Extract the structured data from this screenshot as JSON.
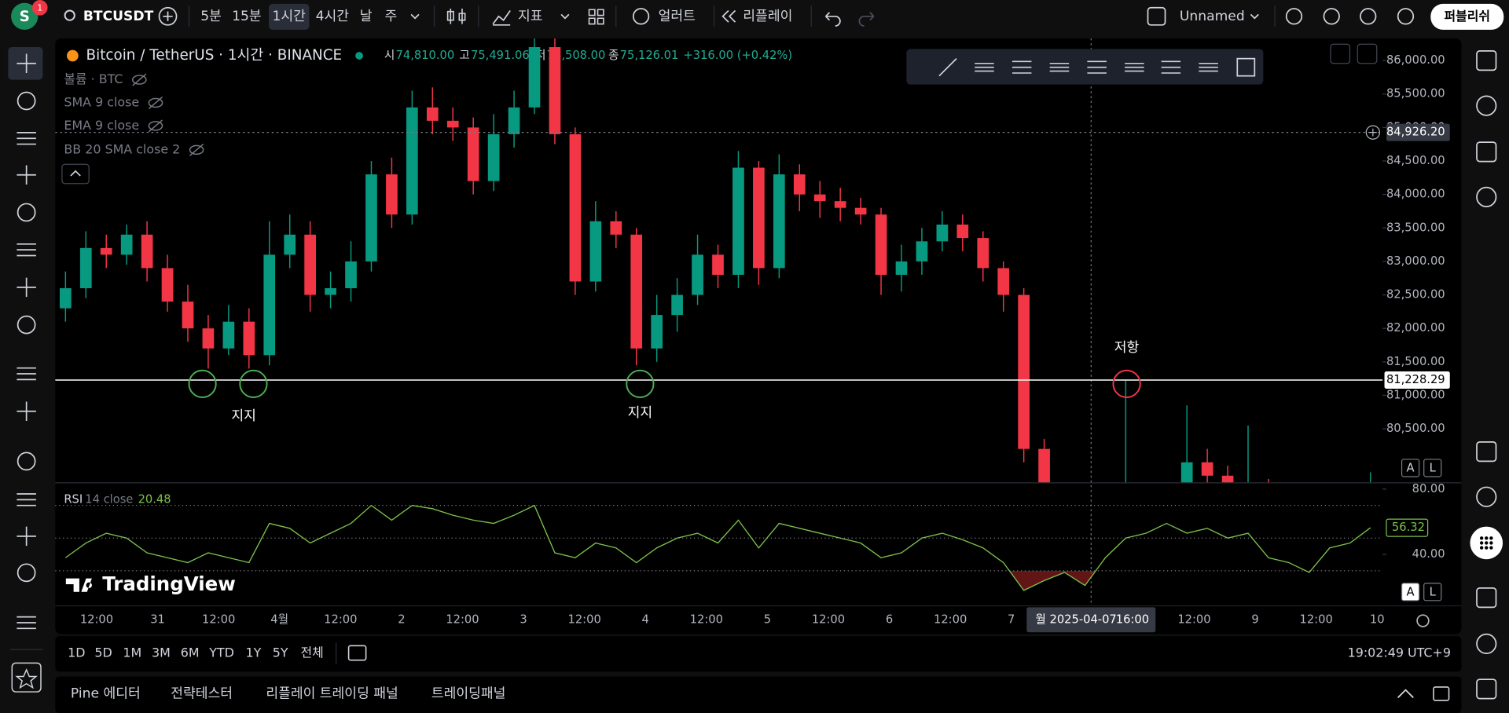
{
  "toolbar": {
    "avatar": "S",
    "badge": "1",
    "symbol": "BTCUSDT",
    "intervals": [
      "5분",
      "15분",
      "1시간",
      "4시간",
      "날",
      "주"
    ],
    "indicators": "지표",
    "alert": "얼러트",
    "replay": "리플레이",
    "layout_name": "Unnamed",
    "publish": "퍼블리쉬"
  },
  "legend": {
    "title": "Bitcoin / TetherUS · 1시간 · BINANCE",
    "open_label": "시",
    "open": "74,810.00",
    "high_label": "고",
    "high": "75,491.06",
    "low_label": "저",
    "low": "74,508.00",
    "close_label": "종",
    "close": "75,126.01",
    "change": "+316.00 (+0.42%)",
    "indicators": [
      "볼륨 · BTC",
      "SMA 9 close",
      "EMA 9 close",
      "BB 20 SMA close 2"
    ]
  },
  "chart_data": [
    {
      "type": "candlestick",
      "open": [
        82300,
        82600,
        83200,
        83100,
        83400,
        82900,
        82400,
        82000,
        81700,
        82100,
        81600,
        83100,
        83400,
        82500,
        82600,
        83000,
        84300,
        83700,
        85300,
        85100,
        85000,
        84200,
        84900,
        85300,
        86200,
        84900,
        82700,
        83600,
        83400,
        81700,
        82200,
        82500,
        83100,
        82800,
        84400,
        82900,
        84300,
        84000,
        83900,
        83800,
        83700,
        82800,
        83000,
        83300,
        83550,
        83350,
        82900,
        82500,
        80200,
        78800,
        78500,
        77800,
        77500,
        78200,
        78600,
        79400,
        80000,
        79800,
        79000,
        79600,
        79200,
        78900,
        78600,
        79000,
        79300
      ],
      "high": [
        82850,
        83450,
        83400,
        83550,
        83600,
        83100,
        82650,
        82200,
        82350,
        82300,
        83600,
        83700,
        83600,
        82850,
        83300,
        84500,
        84550,
        85550,
        85600,
        85300,
        85150,
        85200,
        85550,
        86400,
        86400,
        85000,
        83900,
        83750,
        83500,
        82500,
        82750,
        83400,
        83250,
        84650,
        84500,
        84600,
        84450,
        84200,
        84100,
        83950,
        83800,
        83250,
        83500,
        83750,
        83700,
        83450,
        83000,
        82600,
        80350,
        79000,
        78700,
        78000,
        81228.29,
        78900,
        79600,
        80850,
        80200,
        79950,
        80550,
        79750,
        79300,
        79050,
        79200,
        79500,
        79850
      ],
      "low": [
        82100,
        82450,
        82900,
        82950,
        82700,
        82250,
        81800,
        81400,
        81600,
        81400,
        81450,
        82900,
        82250,
        82300,
        82400,
        82850,
        83500,
        83550,
        84900,
        84800,
        84000,
        84050,
        84700,
        85200,
        84750,
        82500,
        82550,
        83200,
        81450,
        81500,
        81950,
        82350,
        82600,
        82600,
        82650,
        82750,
        83750,
        83650,
        83600,
        83550,
        82500,
        82550,
        82800,
        83150,
        83150,
        82700,
        82250,
        80000,
        78500,
        78200,
        77600,
        77200,
        77400,
        78000,
        78400,
        79200,
        79550,
        78800,
        78850,
        79000,
        78700,
        78400,
        78450,
        78800,
        79150
      ],
      "close": [
        82600,
        83200,
        83100,
        83400,
        82900,
        82400,
        82000,
        81700,
        82100,
        81600,
        83100,
        83400,
        82500,
        82600,
        83000,
        84300,
        83700,
        85300,
        85100,
        85000,
        84200,
        84900,
        85300,
        86200,
        84900,
        82700,
        83600,
        83400,
        81700,
        82200,
        82500,
        83100,
        82800,
        84400,
        82900,
        84300,
        84000,
        83900,
        83800,
        83700,
        82800,
        83000,
        83300,
        83550,
        83350,
        82900,
        82500,
        80200,
        78800,
        78500,
        77800,
        77500,
        78200,
        78600,
        79400,
        80000,
        79800,
        79000,
        79600,
        79200,
        78900,
        78600,
        79000,
        79300,
        79600
      ],
      "colors": {
        "up": "#089981",
        "down": "#f23645"
      },
      "ylim": [
        79700,
        86330
      ],
      "yticks": [
        {
          "value": 80500,
          "label": "80,500.00"
        },
        {
          "value": 81000,
          "label": "81,000.00"
        },
        {
          "value": 81500,
          "label": "81,500.00"
        },
        {
          "value": 82000,
          "label": "82,000.00"
        },
        {
          "value": 82500,
          "label": "82,500.00"
        },
        {
          "value": 83000,
          "label": "83,000.00"
        },
        {
          "value": 83500,
          "label": "83,500.00"
        },
        {
          "value": 84000,
          "label": "84,000.00"
        },
        {
          "value": 84500,
          "label": "84,500.00"
        },
        {
          "value": 85000,
          "label": "85,000.00"
        },
        {
          "value": 85500,
          "label": "85,500.00"
        },
        {
          "value": 86000,
          "label": "86,000.00"
        }
      ],
      "grid": false,
      "hline": {
        "value": 81228.29,
        "label": "81,228.29",
        "color": "#ffffff"
      },
      "crosshair": {
        "value": 84926.2,
        "label": "84,926.20"
      },
      "annotations": [
        {
          "text": "지지",
          "color": "#4caf50"
        },
        {
          "text": "지지",
          "color": "#4caf50"
        },
        {
          "text": "저항",
          "color": "#f23645"
        }
      ]
    },
    {
      "type": "line",
      "name": "RSI",
      "params": "14 close",
      "legend_value": "20.48",
      "color": "#7cc14a",
      "values": [
        38,
        47,
        53,
        50,
        41,
        38,
        35,
        41,
        38,
        35,
        59,
        56,
        47,
        53,
        59,
        70,
        61,
        70,
        68,
        64,
        61,
        59,
        64,
        70,
        41,
        38,
        47,
        44,
        35,
        44,
        50,
        53,
        47,
        61,
        44,
        59,
        56,
        53,
        50,
        47,
        38,
        41,
        50,
        53,
        49,
        44,
        35,
        18,
        24,
        29,
        21,
        38,
        50,
        53,
        59,
        53,
        56,
        50,
        53,
        38,
        35,
        29,
        44,
        47,
        56.32
      ],
      "last_label": "56.32",
      "ylim": [
        8.8,
        84.1
      ],
      "yticks": [
        {
          "value": 80,
          "label": "80.00"
        },
        {
          "value": 40,
          "label": "40.00"
        }
      ],
      "levels": [
        70,
        50,
        30
      ]
    }
  ],
  "time_axis": {
    "labels": [
      "12:00",
      "31",
      "12:00",
      "4월",
      "12:00",
      "2",
      "12:00",
      "3",
      "12:00",
      "4",
      "12:00",
      "5",
      "12:00",
      "6",
      "12:00",
      "7",
      "12:00",
      "9",
      "12:00",
      "10"
    ],
    "crosshair_date": "월 2025-04-07",
    "crosshair_time": "16:00"
  },
  "scale_buttons": [
    "A",
    "L"
  ],
  "branding": "TradingView",
  "bottom_bar": {
    "ranges": [
      "1D",
      "5D",
      "1M",
      "3M",
      "6M",
      "YTD",
      "1Y",
      "5Y",
      "전체"
    ],
    "clock": "19:02:49 UTC+9"
  },
  "panel_tabs": [
    "Pine 에디터",
    "전략테스터",
    "리플레이 트레이딩 패널",
    "트레이딩패널"
  ]
}
